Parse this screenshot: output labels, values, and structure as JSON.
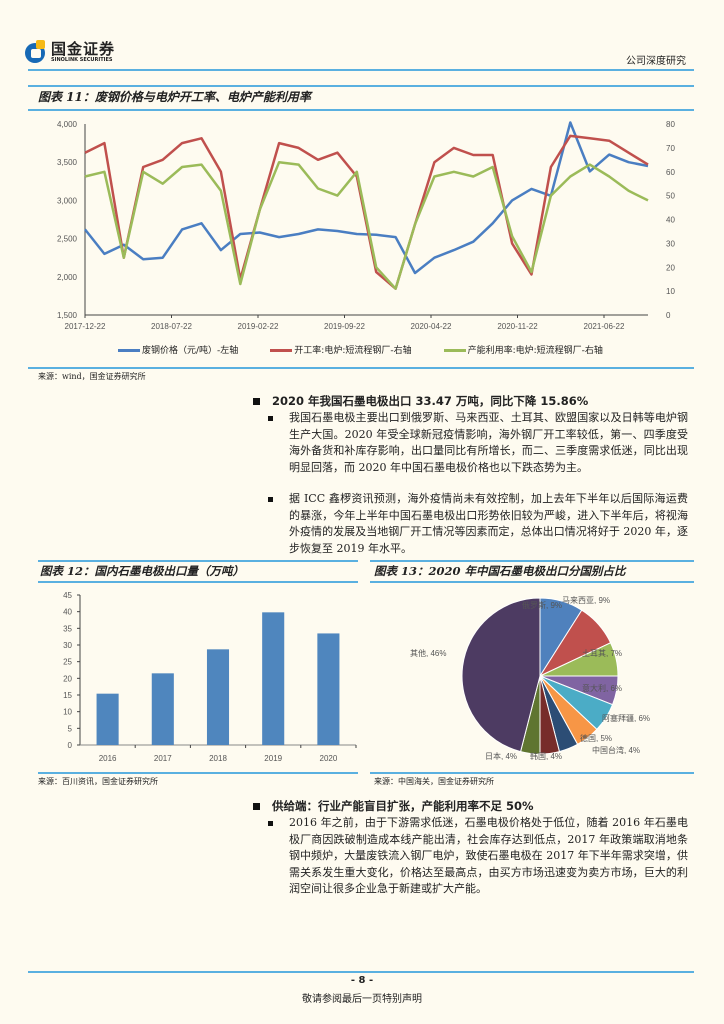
{
  "header": {
    "logo_cn": "国金证券",
    "logo_en": "SINOLINK SECURITIES",
    "report_type": "公司深度研究"
  },
  "figure11": {
    "title": "图表 11：废钢价格与电炉开工率、电炉产能利用率",
    "source": "来源：wind，国金证券研究所",
    "legend": [
      "废钢价格（元/吨）-左轴",
      "开工率:电炉:短流程钢厂-右轴",
      "产能利用率:电炉:短流程钢厂-右轴"
    ],
    "colors": [
      "#4a7ec2",
      "#c0504d",
      "#9bbb59"
    ]
  },
  "figure12": {
    "title": "图表 12：国内石墨电极出口量（万吨）",
    "source": "来源：百川资讯，国金证券研究所",
    "color": "#4f86be"
  },
  "figure13": {
    "title": "图表 13：2020 年中国石墨电极出口分国别占比",
    "source": "来源：中国海关，国金证券研究所"
  },
  "section1": {
    "heading": "2020 年我国石墨电极出口 33.47 万吨，同比下降 15.86%",
    "bullets": [
      "我国石墨电极主要出口到俄罗斯、马来西亚、土耳其、欧盟国家以及日韩等电炉钢生产大国。2020 年受全球新冠疫情影响，海外钢厂开工率较低，第一、四季度受海外备货和补库存影响，出口量同比有所增长，而二、三季度需求低迷，同比出现明显回落，而 2020 年中国石墨电极价格也以下跌态势为主。",
      "据 ICC 鑫椤资讯预测，海外疫情尚未有效控制，加上去年下半年以后国际海运费的暴涨，今年上半年中国石墨电极出口形势依旧较为严峻，进入下半年后，将视海外疫情的发展及当地钢厂开工情况等因素而定，总体出口情况将好于 2020 年，逐步恢复至 2019 年水平。"
    ]
  },
  "section2": {
    "heading": "供给端：行业产能盲目扩张，产能利用率不足 50%",
    "bullets": [
      "2016 年之前，由于下游需求低迷，石墨电极价格处于低位，随着 2016 年石墨电极厂商因跌破制造成本线产能出清，社会库存达到低点，2017 年政策端取消地条钢中频炉，大量废铁流入钢厂电炉，致使石墨电极在 2017 年下半年需求突增，供需关系发生重大变化，价格达至最高点，由买方市场迅速变为卖方市场，巨大的利润空间让很多企业急于新建或扩大产能。"
    ]
  },
  "footer": {
    "page": "- 8 -",
    "disclaimer": "敬请参阅最后一页特别声明"
  },
  "chart_data": [
    {
      "type": "line",
      "title": "废钢价格与电炉开工率、电炉产能利用率",
      "x_ticks": [
        "2017-12-22",
        "2018-07-22",
        "2019-02-22",
        "2019-09-22",
        "2020-04-22",
        "2020-11-22",
        "2021-06-22"
      ],
      "left_axis": {
        "label": "废钢价格（元/吨）",
        "ylim": [
          1500,
          4000
        ],
        "ticks": [
          "1,500",
          "2,000",
          "2,500",
          "3,000",
          "3,500",
          "4,000"
        ]
      },
      "right_axis": {
        "label": "%",
        "ylim": [
          0,
          80
        ],
        "ticks": [
          "0",
          "10",
          "20",
          "30",
          "40",
          "50",
          "60",
          "70",
          "80"
        ]
      },
      "x": [
        "2017-12",
        "2018-02",
        "2018-03",
        "2018-05",
        "2018-07",
        "2018-09",
        "2018-11",
        "2019-01",
        "2019-02",
        "2019-03",
        "2019-05",
        "2019-07",
        "2019-09",
        "2019-11",
        "2020-01",
        "2020-02",
        "2020-03",
        "2020-04",
        "2020-06",
        "2020-08",
        "2020-10",
        "2020-12",
        "2021-01",
        "2021-02",
        "2021-03",
        "2021-04",
        "2021-05",
        "2021-07",
        "2021-09",
        "2021-10"
      ],
      "series": [
        {
          "name": "废钢价格（元/吨）-左轴",
          "axis": "left",
          "values": [
            2620,
            2300,
            2420,
            2230,
            2250,
            2620,
            2700,
            2350,
            2560,
            2580,
            2520,
            2560,
            2620,
            2600,
            2560,
            2550,
            2520,
            2050,
            2250,
            2350,
            2460,
            2700,
            3000,
            3150,
            3060,
            4020,
            3380,
            3600,
            3500,
            3450
          ]
        },
        {
          "name": "开工率:电炉:短流程钢厂-右轴",
          "axis": "right",
          "values": [
            68,
            72,
            24,
            62,
            65,
            72,
            74,
            60,
            15,
            44,
            72,
            70,
            65,
            68,
            58,
            18,
            11,
            38,
            64,
            70,
            67,
            67,
            30,
            17,
            62,
            75,
            74,
            73,
            68,
            63
          ]
        },
        {
          "name": "产能利用率:电炉:短流程钢厂-右轴",
          "axis": "right",
          "values": [
            58,
            60,
            24,
            60,
            55,
            62,
            63,
            52,
            13,
            44,
            64,
            63,
            53,
            50,
            60,
            20,
            11,
            38,
            58,
            60,
            58,
            62,
            33,
            18,
            50,
            58,
            63,
            58,
            52,
            48
          ]
        }
      ]
    },
    {
      "type": "bar",
      "title": "国内石墨电极出口量（万吨）",
      "categories": [
        "2016",
        "2017",
        "2018",
        "2019",
        "2020"
      ],
      "values": [
        15.4,
        21.5,
        28.7,
        39.8,
        33.47
      ],
      "ylim": [
        0,
        45
      ],
      "yticks": [
        "0",
        "5",
        "10",
        "15",
        "20",
        "25",
        "30",
        "35",
        "40",
        "45"
      ]
    },
    {
      "type": "pie",
      "title": "2020 年中国石墨电极出口分国别占比",
      "labels": [
        "俄罗斯",
        "马来西亚",
        "土耳其",
        "意大利",
        "阿塞拜疆",
        "德国",
        "中国台湾",
        "韩国",
        "日本",
        "其他"
      ],
      "values": [
        9,
        9,
        7,
        6,
        6,
        5,
        4,
        4,
        4,
        46
      ],
      "colors": [
        "#4f81bd",
        "#c0504d",
        "#9bbb59",
        "#8064a2",
        "#4bacc6",
        "#f79646",
        "#2c4d75",
        "#772c2a",
        "#5f7530",
        "#4d3b62"
      ]
    }
  ]
}
